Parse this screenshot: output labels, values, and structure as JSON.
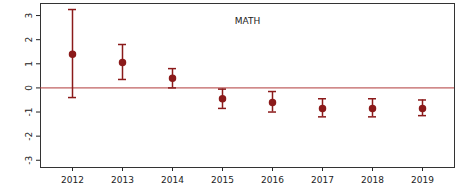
{
  "chart_data": {
    "type": "errorbar",
    "title": "MATH",
    "categories": [
      "2012",
      "2013",
      "2014",
      "2015",
      "2016",
      "2017",
      "2018",
      "2019"
    ],
    "values": [
      1.4,
      1.05,
      0.4,
      -0.45,
      -0.6,
      -0.85,
      -0.85,
      -0.85
    ],
    "lower": [
      -0.4,
      0.35,
      0.0,
      -0.85,
      -1.0,
      -1.2,
      -1.2,
      -1.15
    ],
    "upper": [
      3.25,
      1.8,
      0.8,
      -0.05,
      -0.15,
      -0.45,
      -0.45,
      -0.5
    ],
    "hline": 0,
    "color": "#8b1a1a",
    "ylim": [
      -3.3,
      3.5
    ],
    "yticks": [
      -3,
      -2,
      -1,
      0,
      1,
      2,
      3
    ],
    "marker": "circle",
    "grid": false
  }
}
